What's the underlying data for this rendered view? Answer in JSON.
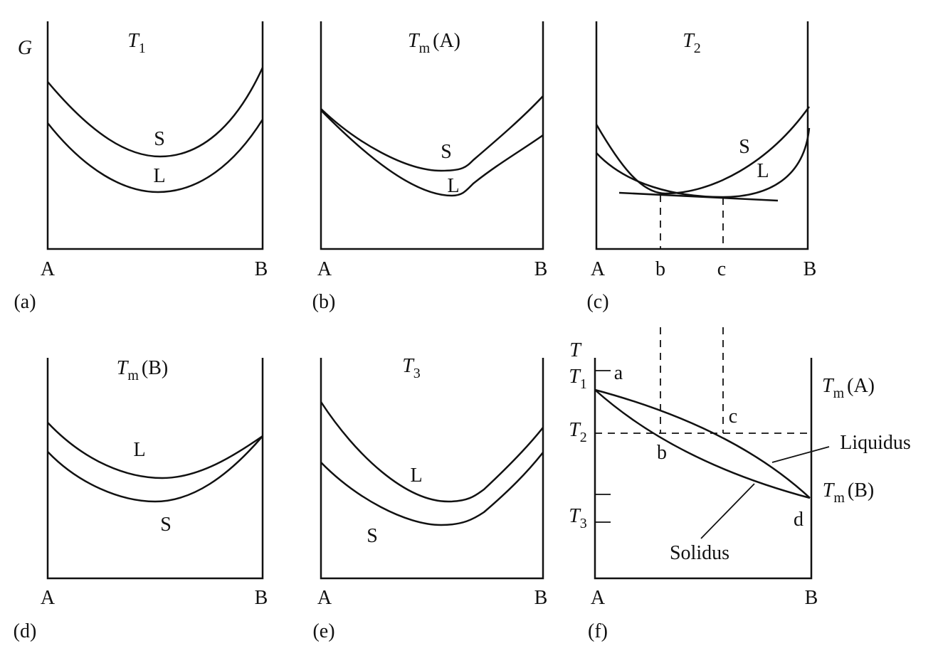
{
  "panels": [
    {
      "label": "(a)",
      "y_axis_label": "G",
      "title": {
        "symbol": "T",
        "subscript": "1"
      },
      "x_left": "A",
      "x_right": "B",
      "curves": [
        "S",
        "L"
      ]
    },
    {
      "label": "(b)",
      "title": {
        "symbol": "T",
        "subscript": "m",
        "suffix": "(A)"
      },
      "x_left": "A",
      "x_right": "B",
      "curves": [
        "S",
        "L"
      ]
    },
    {
      "label": "(c)",
      "title": {
        "symbol": "T",
        "subscript": "2"
      },
      "x_left": "A",
      "x_right": "B",
      "x_marks": [
        "b",
        "c"
      ],
      "curves": [
        "S",
        "L"
      ]
    },
    {
      "label": "(d)",
      "title": {
        "symbol": "T",
        "subscript": "m",
        "suffix": "(B)"
      },
      "x_left": "A",
      "x_right": "B",
      "curves": [
        "L",
        "S"
      ]
    },
    {
      "label": "(e)",
      "title": {
        "symbol": "T",
        "subscript": "3"
      },
      "x_left": "A",
      "x_right": "B",
      "curves": [
        "L",
        "S"
      ]
    },
    {
      "label": "(f)",
      "y_axis_label": "T",
      "x_left": "A",
      "x_right": "B",
      "temperatures": [
        {
          "symbol": "T",
          "subscript": "1"
        },
        {
          "symbol": "T",
          "subscript": "2"
        },
        {
          "symbol": "T",
          "subscript": "3"
        }
      ],
      "points": [
        "a",
        "b",
        "c",
        "d"
      ],
      "right_labels": [
        {
          "symbol": "T",
          "subscript": "m",
          "suffix": "(A)"
        },
        {
          "symbol": "T",
          "subscript": "m",
          "suffix": "(B)"
        }
      ],
      "lines": [
        "Liquidus",
        "Solidus"
      ]
    }
  ]
}
